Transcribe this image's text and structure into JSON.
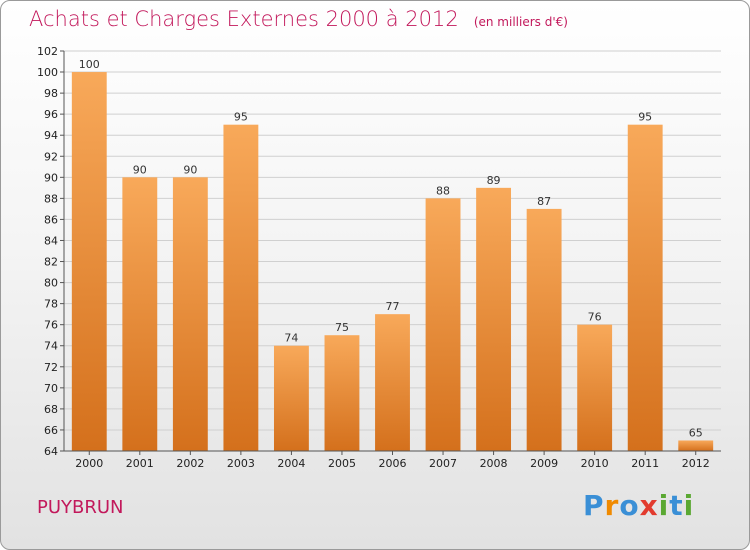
{
  "chart_data": {
    "type": "bar",
    "title": "Achats et Charges Externes 2000 à 2012",
    "subtitle": "(en milliers d'€)",
    "categories": [
      "2000",
      "2001",
      "2002",
      "2003",
      "2004",
      "2005",
      "2006",
      "2007",
      "2008",
      "2009",
      "2010",
      "2011",
      "2012"
    ],
    "values": [
      100,
      90,
      90,
      95,
      74,
      75,
      77,
      88,
      89,
      87,
      76,
      95,
      65
    ],
    "ylim": [
      64,
      102
    ],
    "ytick_step": 2,
    "grid": true,
    "xlabel": "",
    "ylabel": "",
    "colors": {
      "bar_light": "#f8a95a",
      "bar_dark": "#d4701c",
      "title": "#c2185b"
    }
  },
  "commune": "PUYBRUN",
  "logo": {
    "letters": [
      "P",
      "r",
      "o",
      "x",
      "i",
      "t",
      "i"
    ],
    "colors": [
      "#3a8fd6",
      "#f08a00",
      "#3a8fd6",
      "#e23b2e",
      "#5aa832",
      "#3a8fd6",
      "#5aa832"
    ]
  }
}
